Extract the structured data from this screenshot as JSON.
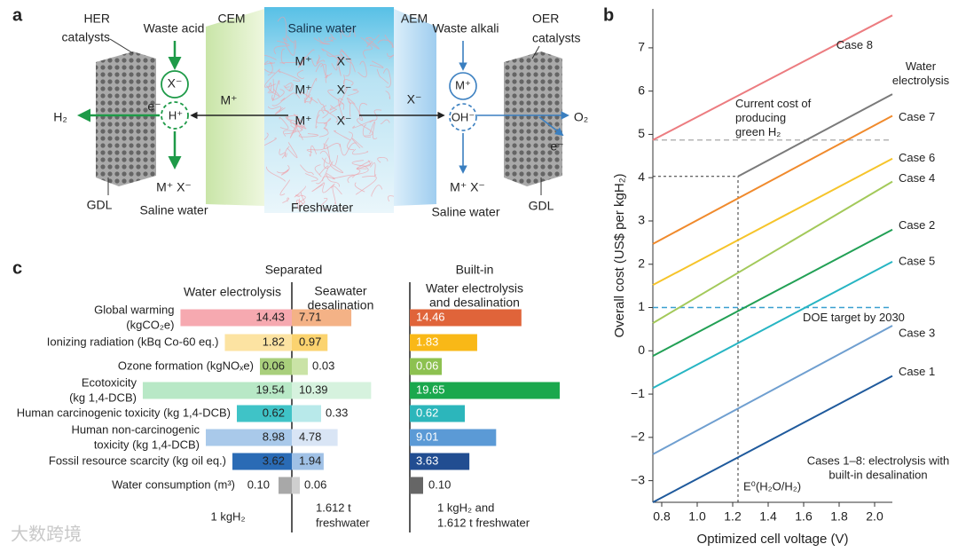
{
  "panel_labels": [
    "a",
    "b",
    "c"
  ],
  "diagram": {
    "her_catalysts": [
      "HER",
      "catalysts"
    ],
    "waste_acid": "Waste acid",
    "cem": "CEM",
    "saline_water_top": "Saline water",
    "aem": "AEM",
    "waste_alkali": "Waste alkali",
    "oer_catalysts": [
      "OER",
      "catalysts"
    ],
    "acid_anion": "X⁻",
    "proton": "H⁺",
    "electron_left": "e⁻",
    "hydrogen": "H₂",
    "cem_ion": "M⁺",
    "center_ions": [
      {
        "cation": "M⁺",
        "anion": "X⁻"
      },
      {
        "cation": "M⁺",
        "anion": "X⁻"
      },
      {
        "cation": "M⁺",
        "anion": "X⁻"
      }
    ],
    "aem_ion": "X⁻",
    "alkali_cation": "M⁺",
    "hydroxide": "OH⁻",
    "oxygen": "O₂",
    "electron_right": "e⁻",
    "gdl_left": "GDL",
    "salt_left": "M⁺ X⁻",
    "saline_water_left": "Saline water",
    "freshwater": "Freshwater",
    "salt_right": "M⁺ X⁻",
    "saline_water_right": "Saline water",
    "gdl_right": "GDL"
  },
  "watermark": "大数跨境",
  "chart_data": [
    {
      "type": "line",
      "x_label": "Optimized cell voltage (V)",
      "y_label": "Overall cost (US$ per kgH₂)",
      "xlim": [
        0.75,
        2.1
      ],
      "ylim": [
        -3.5,
        7.9
      ],
      "xticks": [
        0.8,
        {
          "value": 1,
          "label": "1.0"
        },
        1.2,
        1.4,
        1.6,
        1.8,
        {
          "value": 2,
          "label": "2.0"
        }
      ],
      "yticks": [
        {
          "value": -3,
          "label": "−3"
        },
        {
          "value": -2,
          "label": "−2"
        },
        {
          "value": -1,
          "label": "−1"
        },
        0,
        1,
        2,
        3,
        4,
        5,
        6,
        7
      ],
      "series": [
        {
          "name": "Case 8",
          "color": "#ec7c80",
          "x": [
            0.75,
            2.1
          ],
          "values": [
            4.87,
            7.75
          ]
        },
        {
          "name": "Water electrolysis",
          "color": "#7a7a7a",
          "x": [
            1.23,
            2.1
          ],
          "values": [
            4.03,
            5.93
          ]
        },
        {
          "name": "Case 7",
          "color": "#f08a2c",
          "x": [
            0.75,
            2.1
          ],
          "values": [
            2.47,
            5.43
          ]
        },
        {
          "name": "Case 6",
          "color": "#f6c42a",
          "x": [
            0.75,
            2.1
          ],
          "values": [
            1.52,
            4.44
          ]
        },
        {
          "name": "Case 4",
          "color": "#a3c95a",
          "x": [
            0.75,
            2.1
          ],
          "values": [
            0.64,
            3.91
          ]
        },
        {
          "name": "Case 2",
          "color": "#22a055",
          "x": [
            0.75,
            2.1
          ],
          "values": [
            -0.12,
            2.8
          ]
        },
        {
          "name": "Case 5",
          "color": "#27b5c3",
          "x": [
            0.75,
            2.1
          ],
          "values": [
            -0.86,
            2.06
          ]
        },
        {
          "name": "Case 3",
          "color": "#6f9fd0",
          "x": [
            0.75,
            2.1
          ],
          "values": [
            -2.39,
            0.58
          ]
        },
        {
          "name": "Case 1",
          "color": "#1f5a9c",
          "x": [
            0.75,
            2.1
          ],
          "values": [
            -3.5,
            -0.58
          ]
        }
      ],
      "reference_lines": [
        {
          "value": 4.87,
          "color": "#b5b5b5",
          "label": [
            "Current cost of",
            "producing",
            "green H₂"
          ]
        },
        {
          "value": 1,
          "color": "#3a9fd0",
          "label": [
            "DOE target by 2030"
          ]
        }
      ],
      "guide": {
        "x": 1.23,
        "y": 4.03,
        "label": "E⁰(H₂O/H₂)"
      },
      "note": [
        "Cases 1–8: electrolysis with",
        "built-in desalination"
      ]
    },
    {
      "type": "bar",
      "orientation": "horizontal",
      "group_titles": [
        "Separated",
        "Built-in"
      ],
      "categories": [
        [
          "Global warming",
          "(kgCO₂e)"
        ],
        [
          "Ionizing radiation (kBq Co-60 eq.)"
        ],
        [
          "Ozone formation (kgNOₓe)"
        ],
        [
          "Ecotoxicity",
          "(kg 1,4-DCB)"
        ],
        [
          "Human carcinogenic toxicity (kg 1,4-DCB)"
        ],
        [
          "Human non-carcinogenic",
          "toxicity (kg 1,4-DCB)"
        ],
        [
          "Fossil resource scarcity (kg oil eq.)"
        ],
        [
          "Water consumption (m³)"
        ]
      ],
      "series": [
        {
          "name": [
            "Water electrolysis"
          ],
          "values": [
            14.43,
            1.82,
            0.06,
            19.54,
            0.62,
            8.98,
            3.62,
            0.1
          ],
          "value_labels": [
            "14.43",
            "1.82",
            "0.06",
            "19.54",
            "0.62",
            "8.98",
            "3.62",
            "0.10"
          ],
          "colors": [
            "#f6a9b0",
            "#fce3a2",
            "#a9cf7c",
            "#b8e8c6",
            "#3fc3c7",
            "#a9c9ea",
            "#2a6bb5",
            "#a8a8a8"
          ]
        },
        {
          "name": [
            "Seawater",
            "desalination"
          ],
          "values": [
            7.71,
            0.97,
            0.03,
            10.39,
            0.33,
            4.78,
            1.94,
            0.06
          ],
          "colors": [
            "#f4b286",
            "#fbd36f",
            "#cae3a6",
            "#d6f2de",
            "#b8e9ea",
            "#d9e5f5",
            "#a0c1e6",
            "#cfcfcf"
          ]
        },
        {
          "name": [
            "Water electrolysis",
            "and desalination"
          ],
          "values": [
            14.46,
            1.83,
            0.06,
            19.65,
            0.62,
            9.01,
            3.63,
            0.1
          ],
          "value_labels": [
            "14.46",
            "1.83",
            "0.06",
            "19.65",
            "0.62",
            "9.01",
            "3.63",
            "0.10"
          ],
          "colors": [
            "#e0643a",
            "#f9b817",
            "#8dc150",
            "#1aa84d",
            "#2cb6bb",
            "#5b9ad6",
            "#214d91",
            "#666666"
          ]
        }
      ],
      "footnotes": [
        [
          "1 kgH₂"
        ],
        [
          "1.612 t",
          "freshwater"
        ],
        [
          "1 kgH₂ and",
          "1.612 t freshwater"
        ]
      ]
    }
  ]
}
